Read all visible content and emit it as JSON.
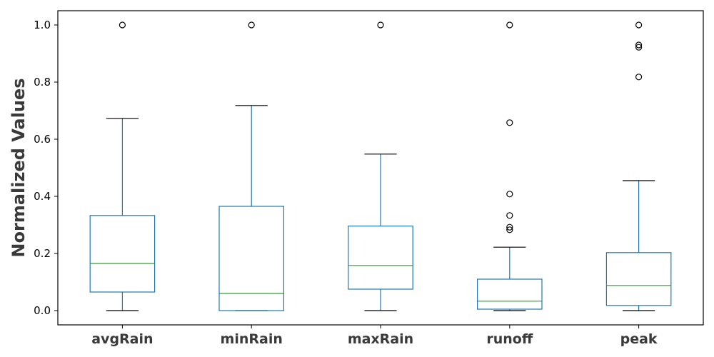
{
  "chart_data": {
    "type": "box",
    "title": "",
    "xlabel": "",
    "ylabel": "Normalized Values",
    "ylim": [
      -0.05,
      1.05
    ],
    "yticks": [
      "0.0",
      "0.2",
      "0.4",
      "0.6",
      "0.8",
      "1.0"
    ],
    "grid": false,
    "colors": {
      "box": "#1f77b4",
      "median": "#2ca02c",
      "cap": "#000000",
      "outlier": "#000000"
    },
    "categories": [
      "avgRain",
      "minRain",
      "maxRain",
      "runoff",
      "peak"
    ],
    "boxes": [
      {
        "name": "avgRain",
        "whisker_low": 0.0,
        "q1": 0.065,
        "median": 0.165,
        "q3": 0.333,
        "whisker_high": 0.673,
        "outliers": [
          1.0
        ]
      },
      {
        "name": "minRain",
        "whisker_low": 0.0,
        "q1": 0.0,
        "median": 0.06,
        "q3": 0.365,
        "whisker_high": 0.718,
        "outliers": [
          1.0
        ]
      },
      {
        "name": "maxRain",
        "whisker_low": 0.0,
        "q1": 0.075,
        "median": 0.158,
        "q3": 0.296,
        "whisker_high": 0.548,
        "outliers": [
          1.0
        ]
      },
      {
        "name": "runoff",
        "whisker_low": 0.0,
        "q1": 0.005,
        "median": 0.033,
        "q3": 0.11,
        "whisker_high": 0.222,
        "outliers": [
          0.283,
          0.292,
          0.333,
          0.408,
          0.658,
          1.0
        ]
      },
      {
        "name": "peak",
        "whisker_low": 0.0,
        "q1": 0.018,
        "median": 0.088,
        "q3": 0.203,
        "whisker_high": 0.455,
        "outliers": [
          0.818,
          0.922,
          0.93,
          1.0
        ]
      }
    ]
  }
}
